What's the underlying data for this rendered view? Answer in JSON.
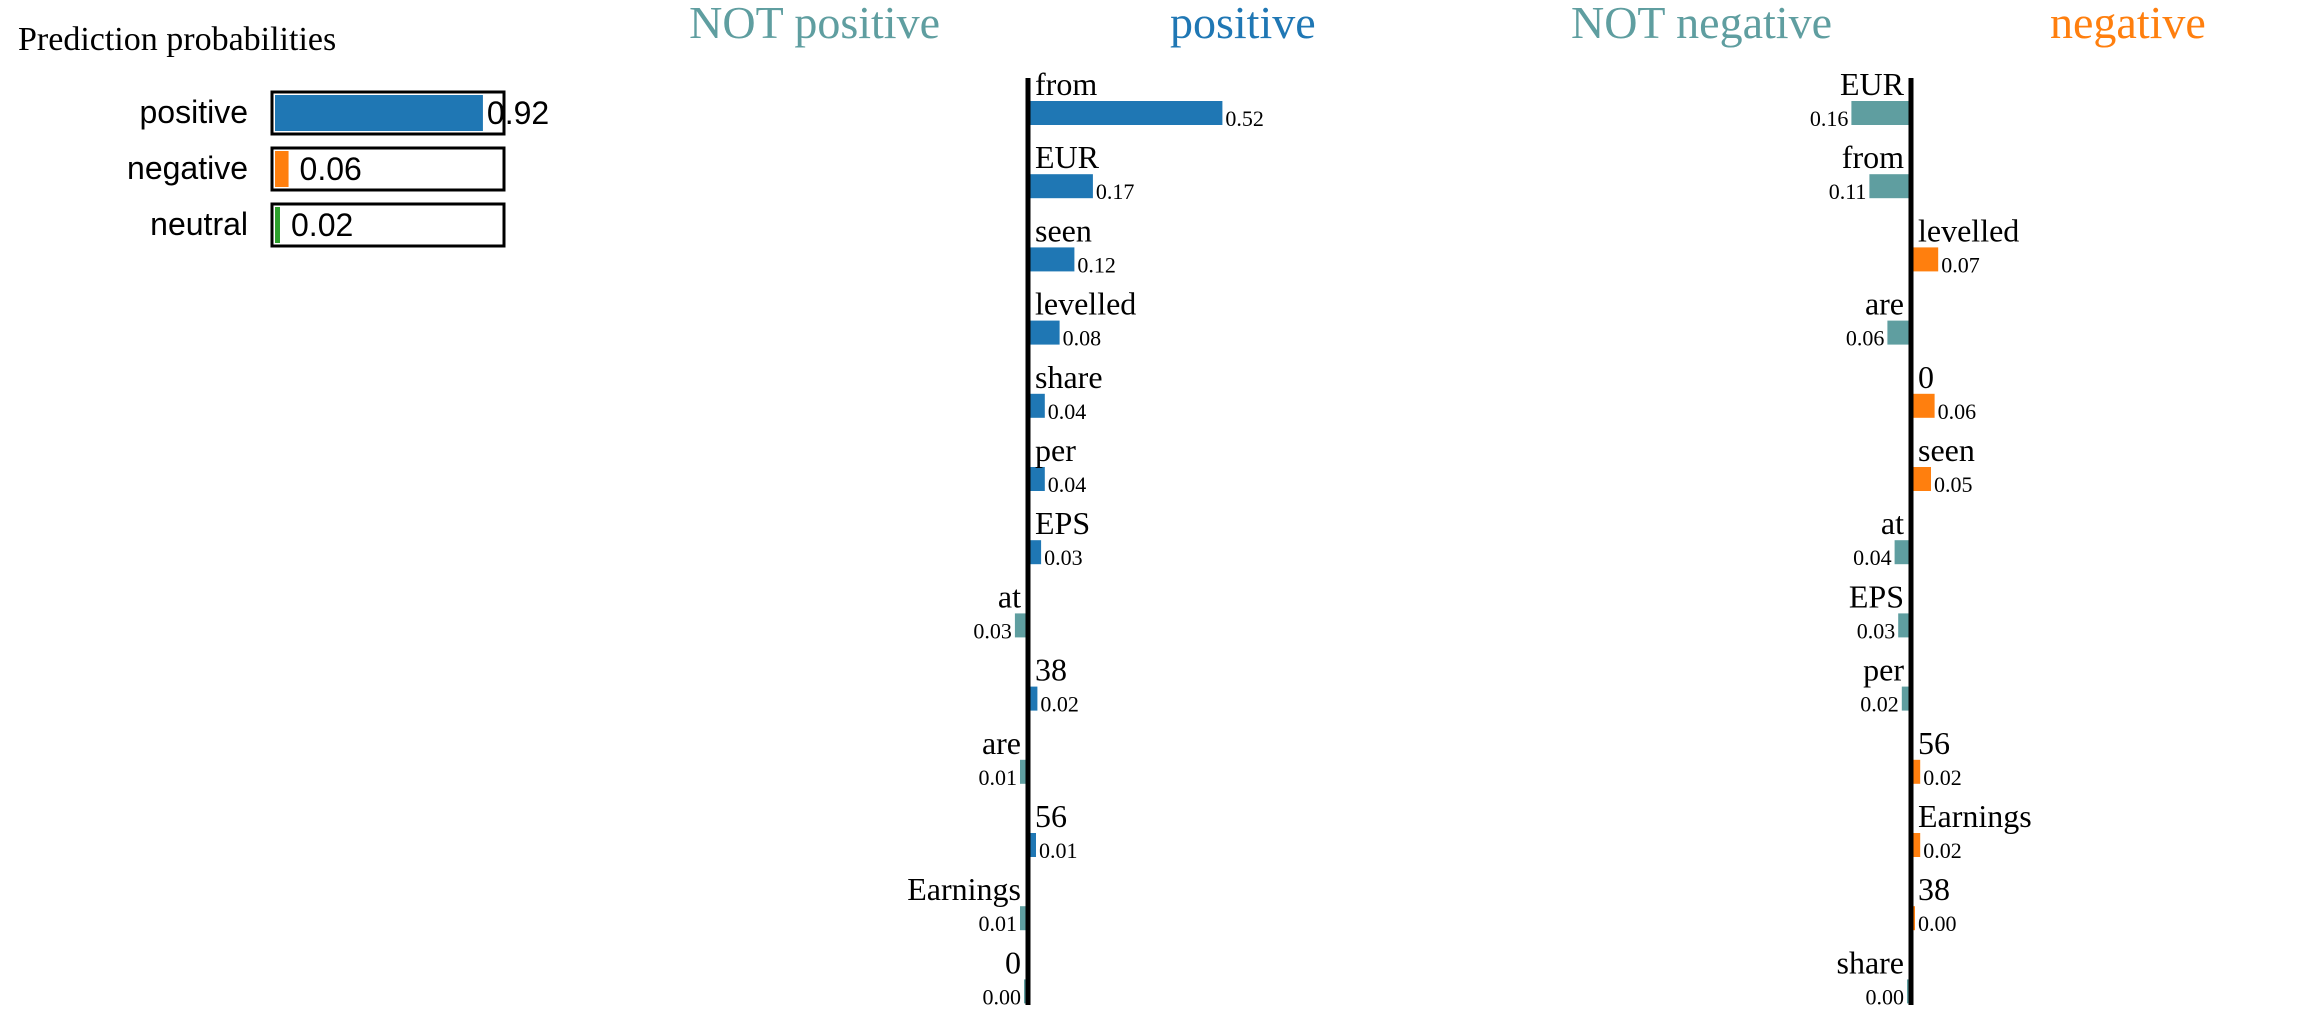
{
  "chart_data": [
    {
      "type": "bar",
      "title": "Prediction probabilities",
      "categories": [
        "positive",
        "negative",
        "neutral"
      ],
      "values": [
        0.92,
        0.06,
        0.02
      ],
      "value_labels": [
        "0.92",
        "0.06",
        "0.02"
      ],
      "xlim": [
        0,
        1
      ],
      "colors": [
        "#1f77b4",
        "#ff7f0e",
        "#2ca02c"
      ]
    },
    {
      "type": "bar",
      "orientation": "horizontal",
      "left_label": "NOT positive",
      "right_label": "positive",
      "left_color": "#5f9ea0",
      "right_color": "#1f77b4",
      "xlim": [
        -0.03,
        0.52
      ],
      "features": [
        {
          "name": "from",
          "value": 0.52,
          "label": "0.52"
        },
        {
          "name": "EUR",
          "value": 0.17,
          "label": "0.17"
        },
        {
          "name": "seen",
          "value": 0.12,
          "label": "0.12"
        },
        {
          "name": "levelled",
          "value": 0.08,
          "label": "0.08"
        },
        {
          "name": "share",
          "value": 0.04,
          "label": "0.04"
        },
        {
          "name": "per",
          "value": 0.04,
          "label": "0.04"
        },
        {
          "name": "EPS",
          "value": 0.03,
          "label": "0.03"
        },
        {
          "name": "at",
          "value": -0.03,
          "label": "0.03"
        },
        {
          "name": "38",
          "value": 0.02,
          "label": "0.02"
        },
        {
          "name": "are",
          "value": -0.01,
          "label": "0.01"
        },
        {
          "name": "56",
          "value": 0.01,
          "label": "0.01"
        },
        {
          "name": "Earnings",
          "value": -0.01,
          "label": "0.01"
        },
        {
          "name": "0",
          "value": -0.001,
          "label": "0.00"
        }
      ]
    },
    {
      "type": "bar",
      "orientation": "horizontal",
      "left_label": "NOT negative",
      "right_label": "negative",
      "left_color": "#5f9ea0",
      "right_color": "#ff7f0e",
      "xlim": [
        -0.16,
        0.07
      ],
      "features": [
        {
          "name": "EUR",
          "value": -0.16,
          "label": "0.16"
        },
        {
          "name": "from",
          "value": -0.11,
          "label": "0.11"
        },
        {
          "name": "levelled",
          "value": 0.07,
          "label": "0.07"
        },
        {
          "name": "are",
          "value": -0.06,
          "label": "0.06"
        },
        {
          "name": "0",
          "value": 0.06,
          "label": "0.06"
        },
        {
          "name": "seen",
          "value": 0.05,
          "label": "0.05"
        },
        {
          "name": "at",
          "value": -0.04,
          "label": "0.04"
        },
        {
          "name": "EPS",
          "value": -0.03,
          "label": "0.03"
        },
        {
          "name": "per",
          "value": -0.02,
          "label": "0.02"
        },
        {
          "name": "56",
          "value": 0.02,
          "label": "0.02"
        },
        {
          "name": "Earnings",
          "value": 0.02,
          "label": "0.02"
        },
        {
          "name": "38",
          "value": 0.001,
          "label": "0.00"
        },
        {
          "name": "share",
          "value": -0.001,
          "label": "0.00"
        }
      ]
    }
  ]
}
